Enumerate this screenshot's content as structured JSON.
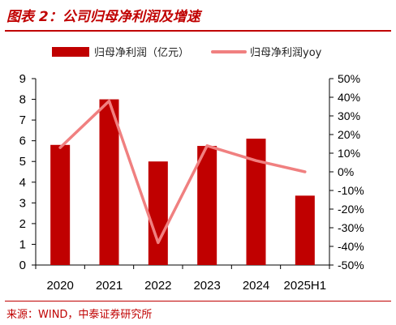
{
  "header": {
    "title": "图表 2：公司归母净利润及增速"
  },
  "footer": {
    "source": "来源：WIND，中泰证券研究所"
  },
  "colors": {
    "bar": "#c00000",
    "line": "#f08080",
    "accent": "#c00000"
  },
  "chart_data": {
    "type": "bar",
    "categories": [
      "2020",
      "2021",
      "2022",
      "2023",
      "2024",
      "2025H1"
    ],
    "series": [
      {
        "name": "归母净利润（亿元）",
        "type": "bar",
        "axis": "left",
        "values": [
          5.8,
          8.0,
          5.0,
          5.75,
          6.1,
          3.35
        ]
      },
      {
        "name": "归母净利润yoy",
        "type": "line",
        "axis": "right",
        "values": [
          13,
          38,
          -38,
          14,
          6,
          0
        ]
      }
    ],
    "y_left": {
      "min": 0,
      "max": 9,
      "ticks": [
        "0",
        "1",
        "2",
        "3",
        "4",
        "5",
        "6",
        "7",
        "8",
        "9"
      ]
    },
    "y_right": {
      "min": -50,
      "max": 50,
      "ticks": [
        "-50%",
        "-40%",
        "-30%",
        "-20%",
        "-10%",
        "0%",
        "10%",
        "20%",
        "30%",
        "40%",
        "50%"
      ]
    },
    "legend_position": "top",
    "grid": false
  }
}
